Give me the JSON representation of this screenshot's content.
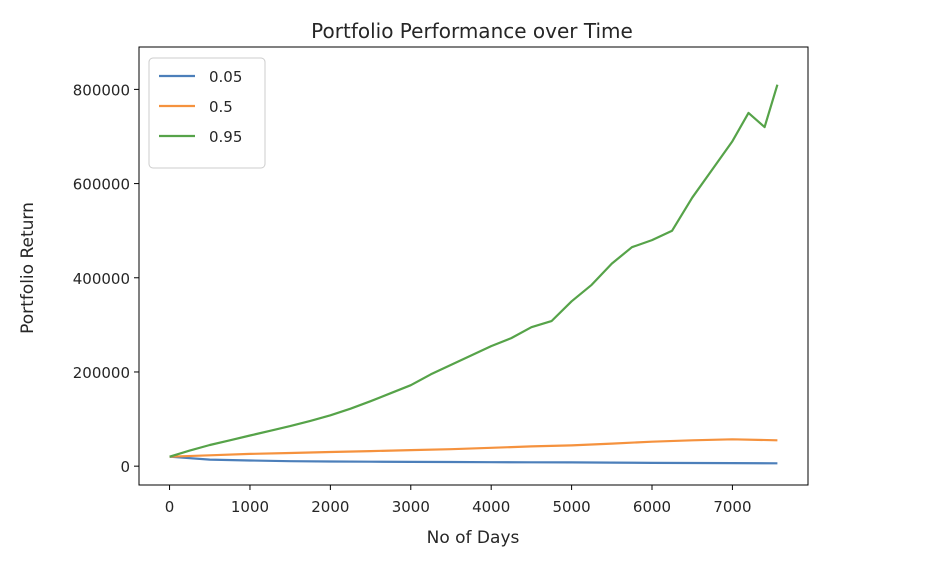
{
  "chart_data": {
    "type": "line",
    "title": "Portfolio Performance over Time",
    "xlabel": "No of Days",
    "ylabel": "Portfolio Return",
    "xlim": [
      -380,
      7940
    ],
    "ylim": [
      -40000,
      890000
    ],
    "xticks": [
      0,
      1000,
      2000,
      3000,
      4000,
      5000,
      6000,
      7000
    ],
    "yticks": [
      0,
      200000,
      400000,
      600000,
      800000
    ],
    "grid": false,
    "legend": "top-left",
    "series": [
      {
        "name": "0.05",
        "color": "#4c7fba",
        "x": [
          0,
          500,
          1000,
          1500,
          2000,
          2500,
          3000,
          3500,
          4000,
          4500,
          5000,
          5500,
          6000,
          6500,
          7000,
          7560
        ],
        "y": [
          20000,
          14000,
          12000,
          10500,
          10000,
          9500,
          9000,
          8800,
          8500,
          8200,
          8000,
          7500,
          7000,
          6800,
          6500,
          6000
        ]
      },
      {
        "name": "0.5",
        "color": "#f5923e",
        "x": [
          0,
          500,
          1000,
          1500,
          2000,
          2500,
          3000,
          3500,
          4000,
          4500,
          5000,
          5500,
          6000,
          6500,
          7000,
          7560
        ],
        "y": [
          20000,
          23000,
          26000,
          28000,
          30000,
          32000,
          34000,
          36000,
          39000,
          42000,
          44000,
          48000,
          52000,
          55000,
          57000,
          55000
        ]
      },
      {
        "name": "0.95",
        "color": "#56a349",
        "x": [
          0,
          250,
          500,
          750,
          1000,
          1250,
          1500,
          1750,
          2000,
          2250,
          2500,
          2750,
          3000,
          3250,
          3500,
          3750,
          4000,
          4250,
          4500,
          4750,
          5000,
          5250,
          5500,
          5750,
          6000,
          6250,
          6500,
          6750,
          7000,
          7200,
          7400,
          7560
        ],
        "y": [
          20000,
          33000,
          45000,
          55000,
          65000,
          75000,
          85000,
          96000,
          108000,
          122000,
          138000,
          155000,
          172000,
          195000,
          215000,
          235000,
          255000,
          272000,
          295000,
          308000,
          350000,
          385000,
          430000,
          465000,
          480000,
          500000,
          570000,
          630000,
          690000,
          750000,
          720000,
          810000
        ]
      }
    ]
  }
}
